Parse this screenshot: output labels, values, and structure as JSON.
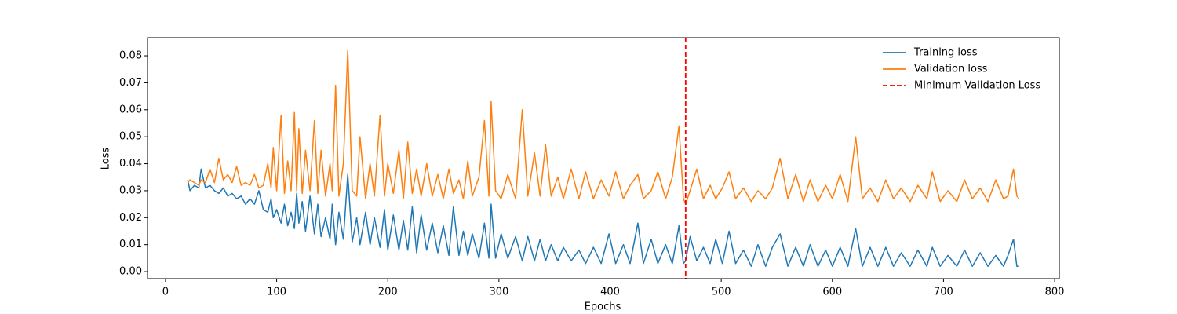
{
  "chart_data": {
    "type": "line",
    "xlabel": "Epochs",
    "ylabel": "Loss",
    "x": [
      20,
      22,
      26,
      30,
      32,
      36,
      40,
      44,
      48,
      52,
      56,
      60,
      64,
      68,
      72,
      76,
      80,
      84,
      88,
      92,
      95,
      97,
      100,
      104,
      107,
      110,
      113,
      116,
      118,
      120,
      123,
      126,
      130,
      134,
      137,
      140,
      144,
      148,
      150,
      153,
      156,
      160,
      164,
      168,
      172,
      175,
      180,
      184,
      188,
      193,
      197,
      200,
      205,
      210,
      214,
      218,
      222,
      226,
      230,
      235,
      240,
      245,
      250,
      255,
      259,
      264,
      268,
      272,
      276,
      282,
      287,
      291,
      293,
      297,
      302,
      308,
      315,
      321,
      326,
      332,
      337,
      342,
      347,
      353,
      358,
      365,
      372,
      378,
      385,
      392,
      399,
      405,
      412,
      418,
      425,
      430,
      437,
      443,
      450,
      456,
      462,
      466,
      468,
      472,
      478,
      484,
      490,
      495,
      501,
      507,
      513,
      520,
      527,
      533,
      540,
      546,
      553,
      560,
      567,
      574,
      580,
      587,
      594,
      600,
      607,
      614,
      621,
      627,
      634,
      641,
      648,
      655,
      662,
      670,
      677,
      685,
      690,
      697,
      704,
      712,
      719,
      726,
      733,
      740,
      747,
      754,
      758,
      763,
      766,
      768
    ],
    "series": [
      {
        "name": "Training loss",
        "color": "#1f77b4",
        "values": [
          0.034,
          0.03,
          0.032,
          0.031,
          0.038,
          0.031,
          0.032,
          0.03,
          0.029,
          0.031,
          0.028,
          0.029,
          0.027,
          0.028,
          0.025,
          0.027,
          0.025,
          0.03,
          0.023,
          0.022,
          0.027,
          0.02,
          0.023,
          0.018,
          0.025,
          0.017,
          0.022,
          0.016,
          0.029,
          0.018,
          0.026,
          0.015,
          0.028,
          0.014,
          0.025,
          0.013,
          0.02,
          0.012,
          0.025,
          0.01,
          0.022,
          0.012,
          0.036,
          0.011,
          0.02,
          0.01,
          0.022,
          0.01,
          0.02,
          0.009,
          0.023,
          0.008,
          0.021,
          0.008,
          0.019,
          0.008,
          0.024,
          0.007,
          0.021,
          0.008,
          0.018,
          0.007,
          0.017,
          0.006,
          0.024,
          0.006,
          0.015,
          0.006,
          0.014,
          0.005,
          0.018,
          0.005,
          0.025,
          0.005,
          0.014,
          0.005,
          0.013,
          0.004,
          0.013,
          0.004,
          0.012,
          0.004,
          0.01,
          0.004,
          0.009,
          0.004,
          0.008,
          0.003,
          0.009,
          0.003,
          0.014,
          0.003,
          0.01,
          0.003,
          0.018,
          0.003,
          0.012,
          0.003,
          0.01,
          0.003,
          0.017,
          0.003,
          0.004,
          0.013,
          0.004,
          0.009,
          0.003,
          0.012,
          0.003,
          0.015,
          0.003,
          0.008,
          0.002,
          0.01,
          0.002,
          0.009,
          0.014,
          0.002,
          0.009,
          0.002,
          0.01,
          0.002,
          0.008,
          0.002,
          0.009,
          0.002,
          0.016,
          0.002,
          0.009,
          0.002,
          0.009,
          0.002,
          0.007,
          0.002,
          0.008,
          0.002,
          0.009,
          0.002,
          0.006,
          0.002,
          0.008,
          0.002,
          0.007,
          0.002,
          0.006,
          0.002,
          0.006,
          0.012,
          0.002,
          0.002
        ]
      },
      {
        "name": "Validation loss",
        "color": "#ff7f0e",
        "values": [
          0.033,
          0.034,
          0.033,
          0.032,
          0.034,
          0.033,
          0.038,
          0.033,
          0.042,
          0.034,
          0.036,
          0.033,
          0.039,
          0.032,
          0.033,
          0.032,
          0.036,
          0.031,
          0.032,
          0.04,
          0.031,
          0.046,
          0.03,
          0.058,
          0.029,
          0.041,
          0.03,
          0.059,
          0.03,
          0.053,
          0.029,
          0.045,
          0.03,
          0.056,
          0.029,
          0.045,
          0.028,
          0.04,
          0.03,
          0.069,
          0.028,
          0.04,
          0.082,
          0.03,
          0.028,
          0.05,
          0.027,
          0.04,
          0.028,
          0.058,
          0.028,
          0.04,
          0.029,
          0.045,
          0.027,
          0.048,
          0.029,
          0.038,
          0.028,
          0.04,
          0.028,
          0.036,
          0.027,
          0.038,
          0.029,
          0.034,
          0.027,
          0.041,
          0.028,
          0.035,
          0.056,
          0.028,
          0.063,
          0.03,
          0.027,
          0.036,
          0.027,
          0.06,
          0.028,
          0.044,
          0.028,
          0.047,
          0.028,
          0.035,
          0.027,
          0.038,
          0.027,
          0.037,
          0.027,
          0.034,
          0.028,
          0.037,
          0.027,
          0.032,
          0.036,
          0.027,
          0.03,
          0.037,
          0.027,
          0.035,
          0.054,
          0.027,
          0.025,
          0.03,
          0.038,
          0.027,
          0.032,
          0.027,
          0.031,
          0.037,
          0.027,
          0.031,
          0.026,
          0.03,
          0.027,
          0.031,
          0.042,
          0.027,
          0.036,
          0.026,
          0.034,
          0.026,
          0.032,
          0.027,
          0.036,
          0.026,
          0.05,
          0.027,
          0.031,
          0.026,
          0.034,
          0.027,
          0.031,
          0.026,
          0.032,
          0.027,
          0.037,
          0.026,
          0.03,
          0.026,
          0.034,
          0.027,
          0.031,
          0.026,
          0.034,
          0.027,
          0.028,
          0.038,
          0.028,
          0.027
        ]
      }
    ],
    "vlines": [
      {
        "value": 468,
        "name": "Minimum Validation Loss",
        "color": "red",
        "style": "dashed"
      }
    ],
    "xlim": [
      -16.2,
      804.2
    ],
    "xticks": [
      0,
      100,
      200,
      300,
      400,
      500,
      600,
      700,
      800
    ],
    "ylim": [
      -0.0026,
      0.0867
    ],
    "yticks": [
      {
        "value": 0,
        "label": "0.00"
      },
      0.01,
      0.02,
      0.03,
      0.04,
      0.05,
      0.06,
      0.07,
      0.08
    ],
    "grid": false,
    "legend": "upper right"
  }
}
